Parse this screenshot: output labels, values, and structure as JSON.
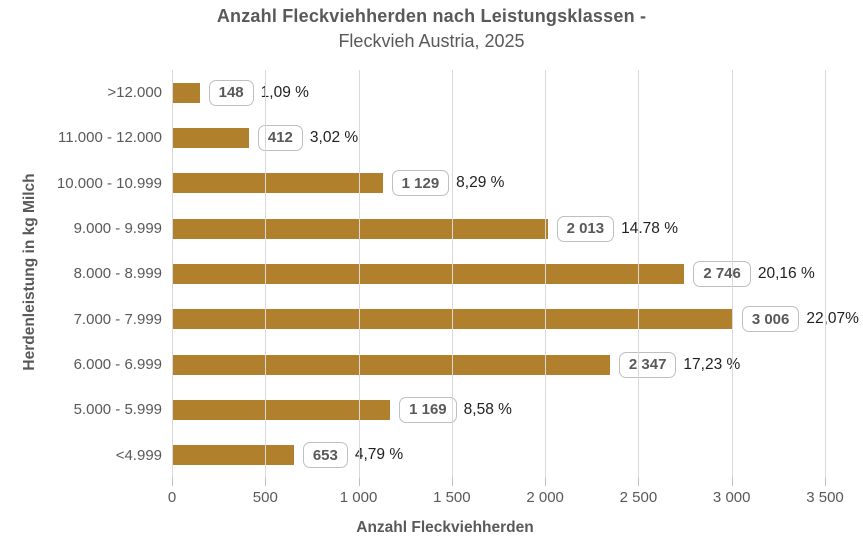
{
  "chart_data": {
    "type": "bar",
    "orientation": "horizontal",
    "title": "Anzahl Fleckviehherden nach Leistungsklassen -",
    "subtitle": "Fleckvieh Austria, 2025",
    "xlabel": "Anzahl Fleckviehherden",
    "ylabel": "Herdenleistung in kg Milch",
    "xlim": [
      0,
      3500
    ],
    "x_tick_labels": [
      "0",
      "500",
      "1 000",
      "1 500",
      "2 000",
      "2 500",
      "3 000",
      "3 500"
    ],
    "grid": true,
    "legend": false,
    "categories": [
      ">12.000",
      "11.000 - 12.000",
      "10.000 - 10.999",
      "9.000 - 9.999",
      "8.000 - 8.999",
      "7.000 - 7.999",
      "6.000 - 6.999",
      "5.000 - 5.999",
      "<4.999"
    ],
    "values": [
      148,
      412,
      1129,
      2013,
      2746,
      3006,
      2347,
      1169,
      653
    ],
    "value_labels": [
      "148",
      "412",
      "1 129",
      "2 013",
      "2 746",
      "3 006",
      "2 347",
      "1 169",
      "653"
    ],
    "percent_labels": [
      "1,09 %",
      "3,02 %",
      "8,29 %",
      "14.78 %",
      "20,16 %",
      "22,07%",
      "17,23 %",
      "8,58 %",
      "4,79 %"
    ],
    "colors": {
      "bar": "#B1802C",
      "grid": "#D9D9D9",
      "tick": "#BFBFBF",
      "axis_text": "#595959",
      "title_text": "#595959",
      "value_box_border": "#BFBFBF",
      "value_text": "#595959",
      "percent_text": "#1F1F1F"
    }
  }
}
